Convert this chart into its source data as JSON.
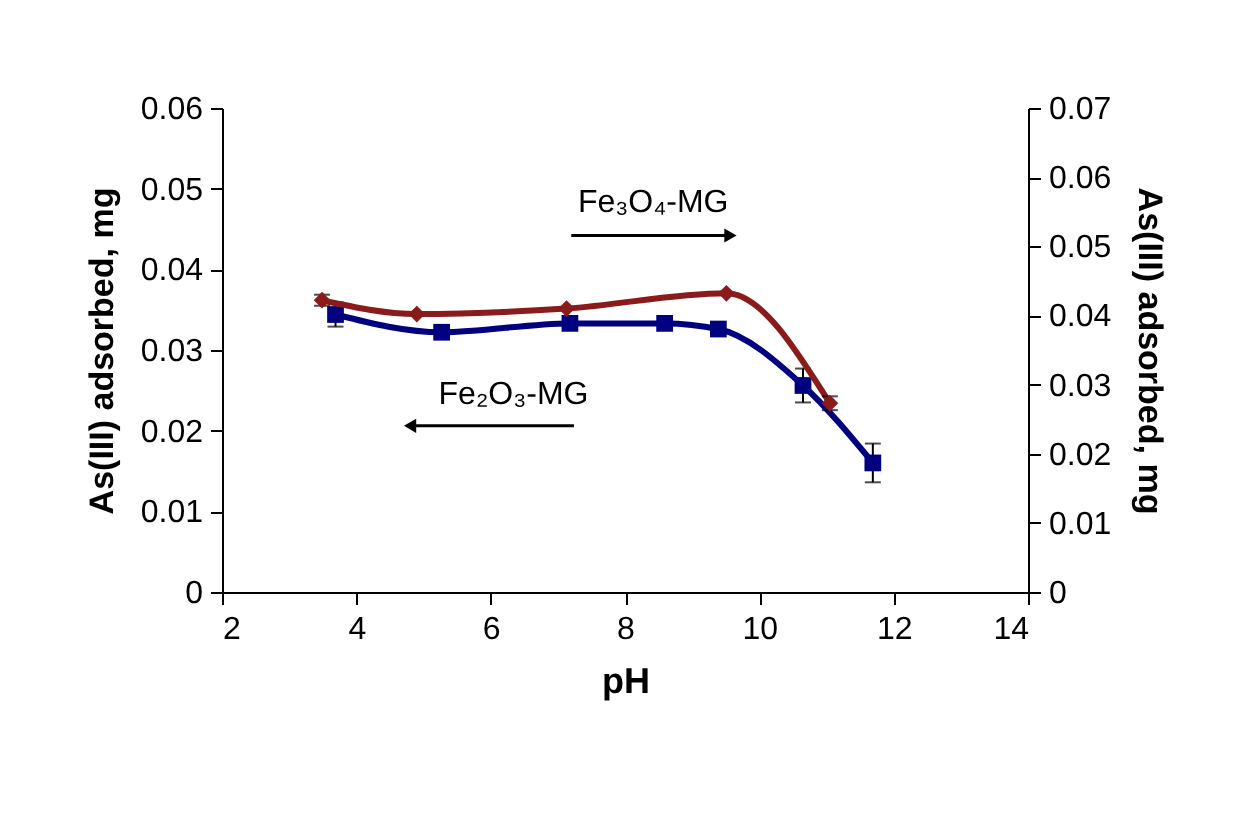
{
  "chart_data": {
    "type": "line",
    "xlabel": "pH",
    "ylabel": "As(III) adsorbed, mg",
    "y2label": "As(III) adsorbed, mg",
    "xlim": [
      2,
      14
    ],
    "xticks": [
      2,
      4,
      6,
      8,
      10,
      12,
      14
    ],
    "ylim": [
      0,
      0.06
    ],
    "yticks": [
      0,
      0.01,
      0.02,
      0.03,
      0.04,
      0.05,
      0.06
    ],
    "y2lim": [
      0,
      0.07
    ],
    "y2ticks": [
      0,
      0.01,
      0.02,
      0.03,
      0.04,
      0.05,
      0.06,
      0.07
    ],
    "grid": false,
    "legend": false,
    "series": [
      {
        "name": "Fe₂O₃-MG",
        "color": "#000080",
        "marker": "square",
        "x": [
          3.69,
          5.27,
          7.18,
          8.59,
          9.39,
          10.65,
          11.69
        ],
        "values": [
          0.0344,
          0.0322,
          0.0333,
          0.0333,
          0.0326,
          0.0256,
          0.016
        ],
        "errors": [
          0.0015,
          null,
          null,
          null,
          null,
          0.0021,
          0.0024
        ]
      },
      {
        "name": "Fe₃O₄-MG",
        "color": "#8b1a1a",
        "marker": "diamond",
        "axis": "y2",
        "x": [
          3.49,
          4.9,
          7.13,
          9.51,
          11.05
        ],
        "values": [
          0.0422,
          0.0402,
          0.041,
          0.0432,
          0.0273
        ],
        "errors": [
          0.0008,
          null,
          null,
          null,
          0.001
        ]
      }
    ]
  }
}
